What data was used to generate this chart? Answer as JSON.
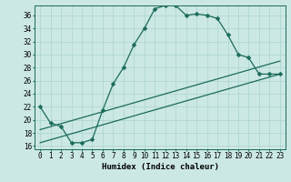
{
  "xlabel": "Humidex (Indice chaleur)",
  "xlim": [
    -0.5,
    23.5
  ],
  "ylim": [
    15.5,
    37.5
  ],
  "yticks": [
    16,
    18,
    20,
    22,
    24,
    26,
    28,
    30,
    32,
    34,
    36
  ],
  "xticks": [
    0,
    1,
    2,
    3,
    4,
    5,
    6,
    7,
    8,
    9,
    10,
    11,
    12,
    13,
    14,
    15,
    16,
    17,
    18,
    19,
    20,
    21,
    22,
    23
  ],
  "bg_color": "#cce8e4",
  "line_color": "#1a6b5a",
  "grid_color": "#aad4cf",
  "curve1_x": [
    0,
    1,
    2,
    3,
    4,
    5,
    6,
    7,
    8,
    9,
    10,
    11,
    12,
    13,
    14,
    15,
    16,
    17,
    18,
    19,
    20,
    21,
    22,
    23
  ],
  "curve1_y": [
    22,
    19.5,
    19,
    16.5,
    16.5,
    17,
    21.5,
    25.5,
    28,
    31.5,
    34,
    37,
    37.5,
    37.5,
    36,
    36.2,
    36,
    35.5,
    33,
    30,
    29.5,
    27,
    27,
    27
  ],
  "curve2_x": [
    0,
    23
  ],
  "curve2_y": [
    18.5,
    29.0
  ],
  "curve3_x": [
    0,
    23
  ],
  "curve3_y": [
    16.5,
    27.0
  ],
  "markersize": 2.5,
  "linewidth": 0.9
}
